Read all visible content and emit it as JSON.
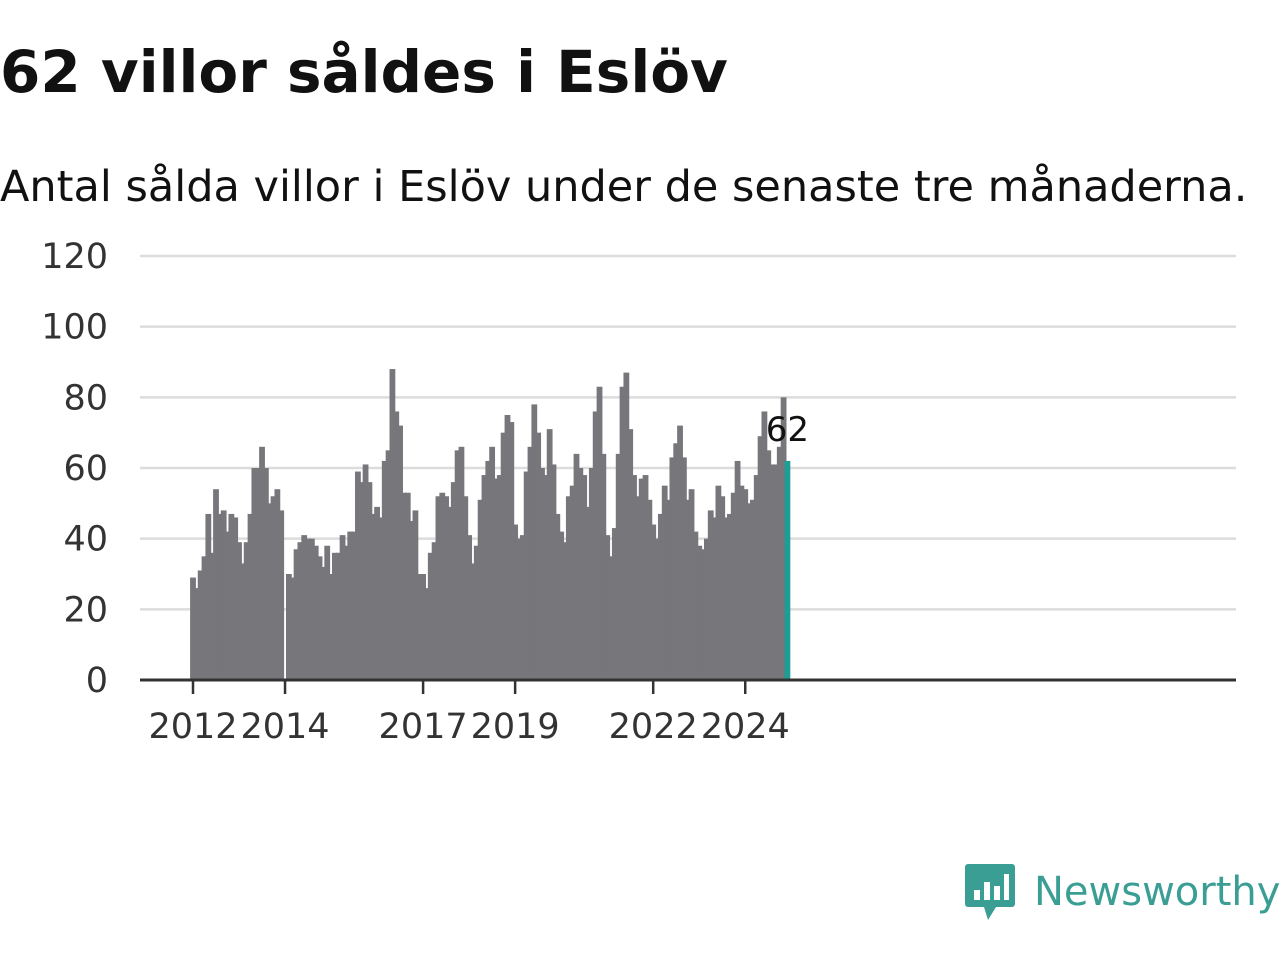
{
  "title": "62 villor såldes i Eslöv",
  "subtitle": "Antal sålda villor i Eslöv under de senaste tre månaderna.",
  "brand": {
    "name": "Newsworthy",
    "icon": "newsworthy-logo-icon",
    "color": "#3a9e94"
  },
  "colors": {
    "bar": "#77767b",
    "highlight": "#1d9e94",
    "grid": "#dcdcdc",
    "axis": "#333333"
  },
  "chart_data": {
    "type": "bar",
    "x_start": "2012-01",
    "x_end": "2025-03",
    "xticks": [
      "2012",
      "2014",
      "2017",
      "2019",
      "2022",
      "2024"
    ],
    "yticks": [
      "0",
      "20",
      "40",
      "60",
      "80",
      "100",
      "120"
    ],
    "ylim": [
      0,
      120
    ],
    "grid": true,
    "values": [
      29,
      26,
      31,
      35,
      47,
      36,
      54,
      47,
      48,
      42,
      47,
      46,
      39,
      33,
      39,
      47,
      60,
      60,
      66,
      60,
      50,
      52,
      54,
      48,
      null,
      30,
      29,
      37,
      39,
      41,
      40,
      40,
      38,
      35,
      32,
      38,
      30,
      36,
      36,
      41,
      38,
      42,
      42,
      59,
      56,
      61,
      56,
      47,
      49,
      46,
      62,
      65,
      88,
      76,
      72,
      53,
      53,
      45,
      48,
      30,
      30,
      26,
      36,
      39,
      52,
      53,
      52,
      49,
      56,
      65,
      66,
      52,
      41,
      33,
      38,
      51,
      58,
      62,
      66,
      57,
      58,
      70,
      75,
      73,
      44,
      40,
      41,
      59,
      66,
      78,
      70,
      60,
      58,
      71,
      61,
      47,
      42,
      39,
      52,
      55,
      64,
      60,
      58,
      49,
      60,
      76,
      83,
      64,
      41,
      35,
      43,
      64,
      83,
      87,
      71,
      58,
      52,
      57,
      58,
      51,
      44,
      40,
      47,
      55,
      51,
      63,
      67,
      72,
      63,
      51,
      54,
      42,
      38,
      37,
      40,
      48,
      46,
      55,
      52,
      46,
      47,
      53,
      62,
      55,
      54,
      50,
      51,
      58,
      69,
      76,
      65,
      61,
      61,
      66,
      80,
      62
    ],
    "highlight": {
      "index": 155,
      "value": 62,
      "label": "62"
    }
  }
}
